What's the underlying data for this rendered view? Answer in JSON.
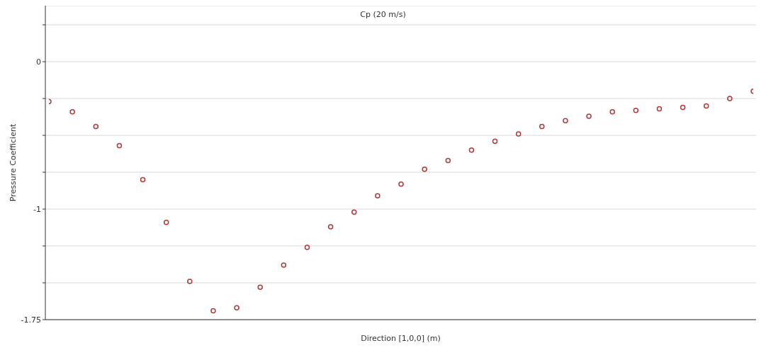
{
  "chart_data": {
    "type": "scatter",
    "title": "Cp (20 m/s)",
    "xlabel": "Direction [1,0,0] (m)",
    "ylabel": "Pressure Coefficient",
    "categories": [
      null,
      null,
      null,
      null,
      null,
      null,
      null,
      null,
      null,
      null,
      null,
      null,
      null,
      null,
      null,
      null,
      null,
      null,
      null,
      null,
      null,
      null,
      null,
      null,
      null,
      null,
      null,
      null,
      null,
      null,
      null
    ],
    "values": [
      -0.27,
      -0.34,
      -0.44,
      -0.57,
      -0.8,
      -1.09,
      -1.49,
      -1.69,
      -1.67,
      -1.53,
      -1.38,
      -1.26,
      -1.12,
      -1.02,
      -0.91,
      -0.83,
      -0.73,
      -0.67,
      -0.6,
      -0.54,
      -0.49,
      -0.44,
      -0.4,
      -0.37,
      -0.34,
      -0.33,
      -0.32,
      -0.31,
      -0.3,
      -0.25,
      -0.2
    ],
    "color": "#b03a3a",
    "marker": "circle",
    "grid": "y",
    "ylim": [
      -1.75,
      0.38
    ],
    "yticks": [
      {
        "value": 0.25,
        "label": null
      },
      0,
      {
        "value": -0.25,
        "label": null
      },
      {
        "value": -0.5,
        "label": null
      },
      {
        "value": -0.75,
        "label": null
      },
      -1,
      {
        "value": -1.25,
        "label": null
      },
      {
        "value": -1.5,
        "label": null
      },
      -1.75
    ]
  }
}
